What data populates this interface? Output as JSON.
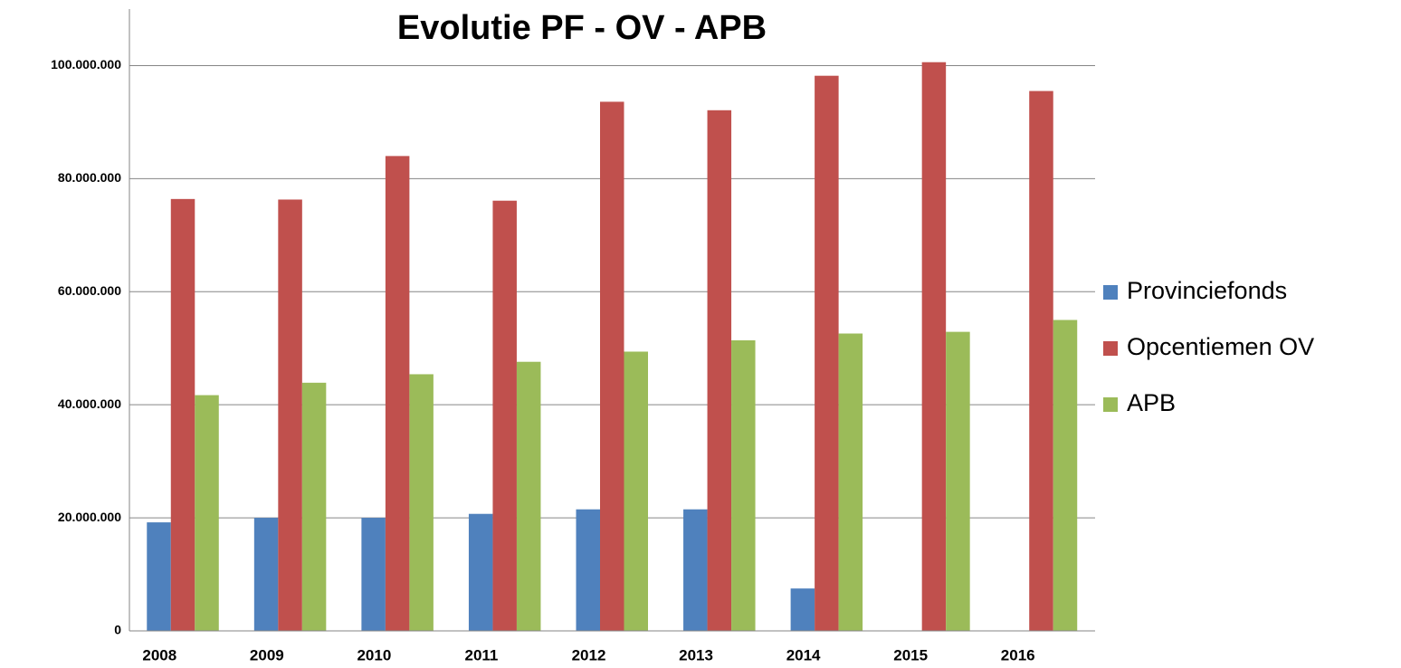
{
  "chart_data": {
    "type": "bar",
    "title": "Evolutie  PF - OV - APB",
    "categories": [
      "2008",
      "2009",
      "2010",
      "2011",
      "2012",
      "2013",
      "2014",
      "2015",
      "2016"
    ],
    "series": [
      {
        "name": "Provinciefonds",
        "color": "#4f81bd",
        "values": [
          19200000,
          20000000,
          20000000,
          20700000,
          21500000,
          21500000,
          7500000,
          null,
          null
        ]
      },
      {
        "name": "Opcentiemen OV",
        "color": "#c0504d",
        "values": [
          76400000,
          76300000,
          84000000,
          76100000,
          93600000,
          92100000,
          98200000,
          100600000,
          95500000
        ]
      },
      {
        "name": "APB",
        "color": "#9bbb59",
        "values": [
          41700000,
          43900000,
          45400000,
          47600000,
          49400000,
          51400000,
          52600000,
          52900000,
          55000000
        ]
      }
    ],
    "ylim": [
      0,
      110000000
    ],
    "yticks": [
      0,
      {
        "value": 20000000,
        "label": "20.000.000"
      },
      {
        "value": 40000000,
        "label": "40.000.000"
      },
      {
        "value": 60000000,
        "label": "60.000.000"
      },
      {
        "value": 80000000,
        "label": "80.000.000"
      },
      {
        "value": 100000000,
        "label": "100.000.000"
      }
    ],
    "grid": true,
    "legend": "right"
  }
}
